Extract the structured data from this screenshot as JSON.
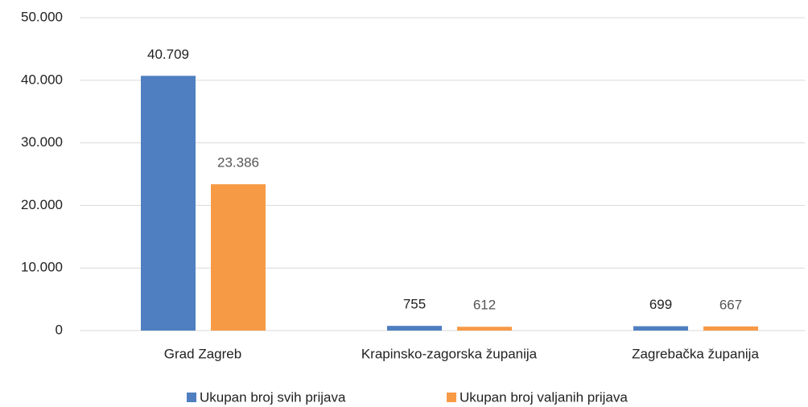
{
  "chart_data": {
    "type": "bar",
    "categories": [
      "Grad Zagreb",
      "Krapinsko-zagorska županija",
      "Zagrebačka županija"
    ],
    "series": [
      {
        "name": "Ukupan broj svih prijava",
        "color": "#4f7fc0",
        "values": [
          40709,
          755,
          699
        ],
        "value_labels": [
          "40.709",
          "755",
          "699"
        ]
      },
      {
        "name": "Ukupan broj valjanih prijava",
        "color": "#f79a46",
        "values": [
          23386,
          612,
          667
        ],
        "value_labels": [
          "23.386",
          "612",
          "667"
        ]
      }
    ],
    "ylim": [
      0,
      50000
    ],
    "yticks": [
      {
        "value": 0,
        "label": "0"
      },
      {
        "value": 10000,
        "label": "10.000"
      },
      {
        "value": 20000,
        "label": "20.000"
      },
      {
        "value": 30000,
        "label": "30.000"
      },
      {
        "value": 40000,
        "label": "40.000"
      },
      {
        "value": 50000,
        "label": "50.000"
      }
    ],
    "grid": true,
    "legend": "bottom"
  }
}
